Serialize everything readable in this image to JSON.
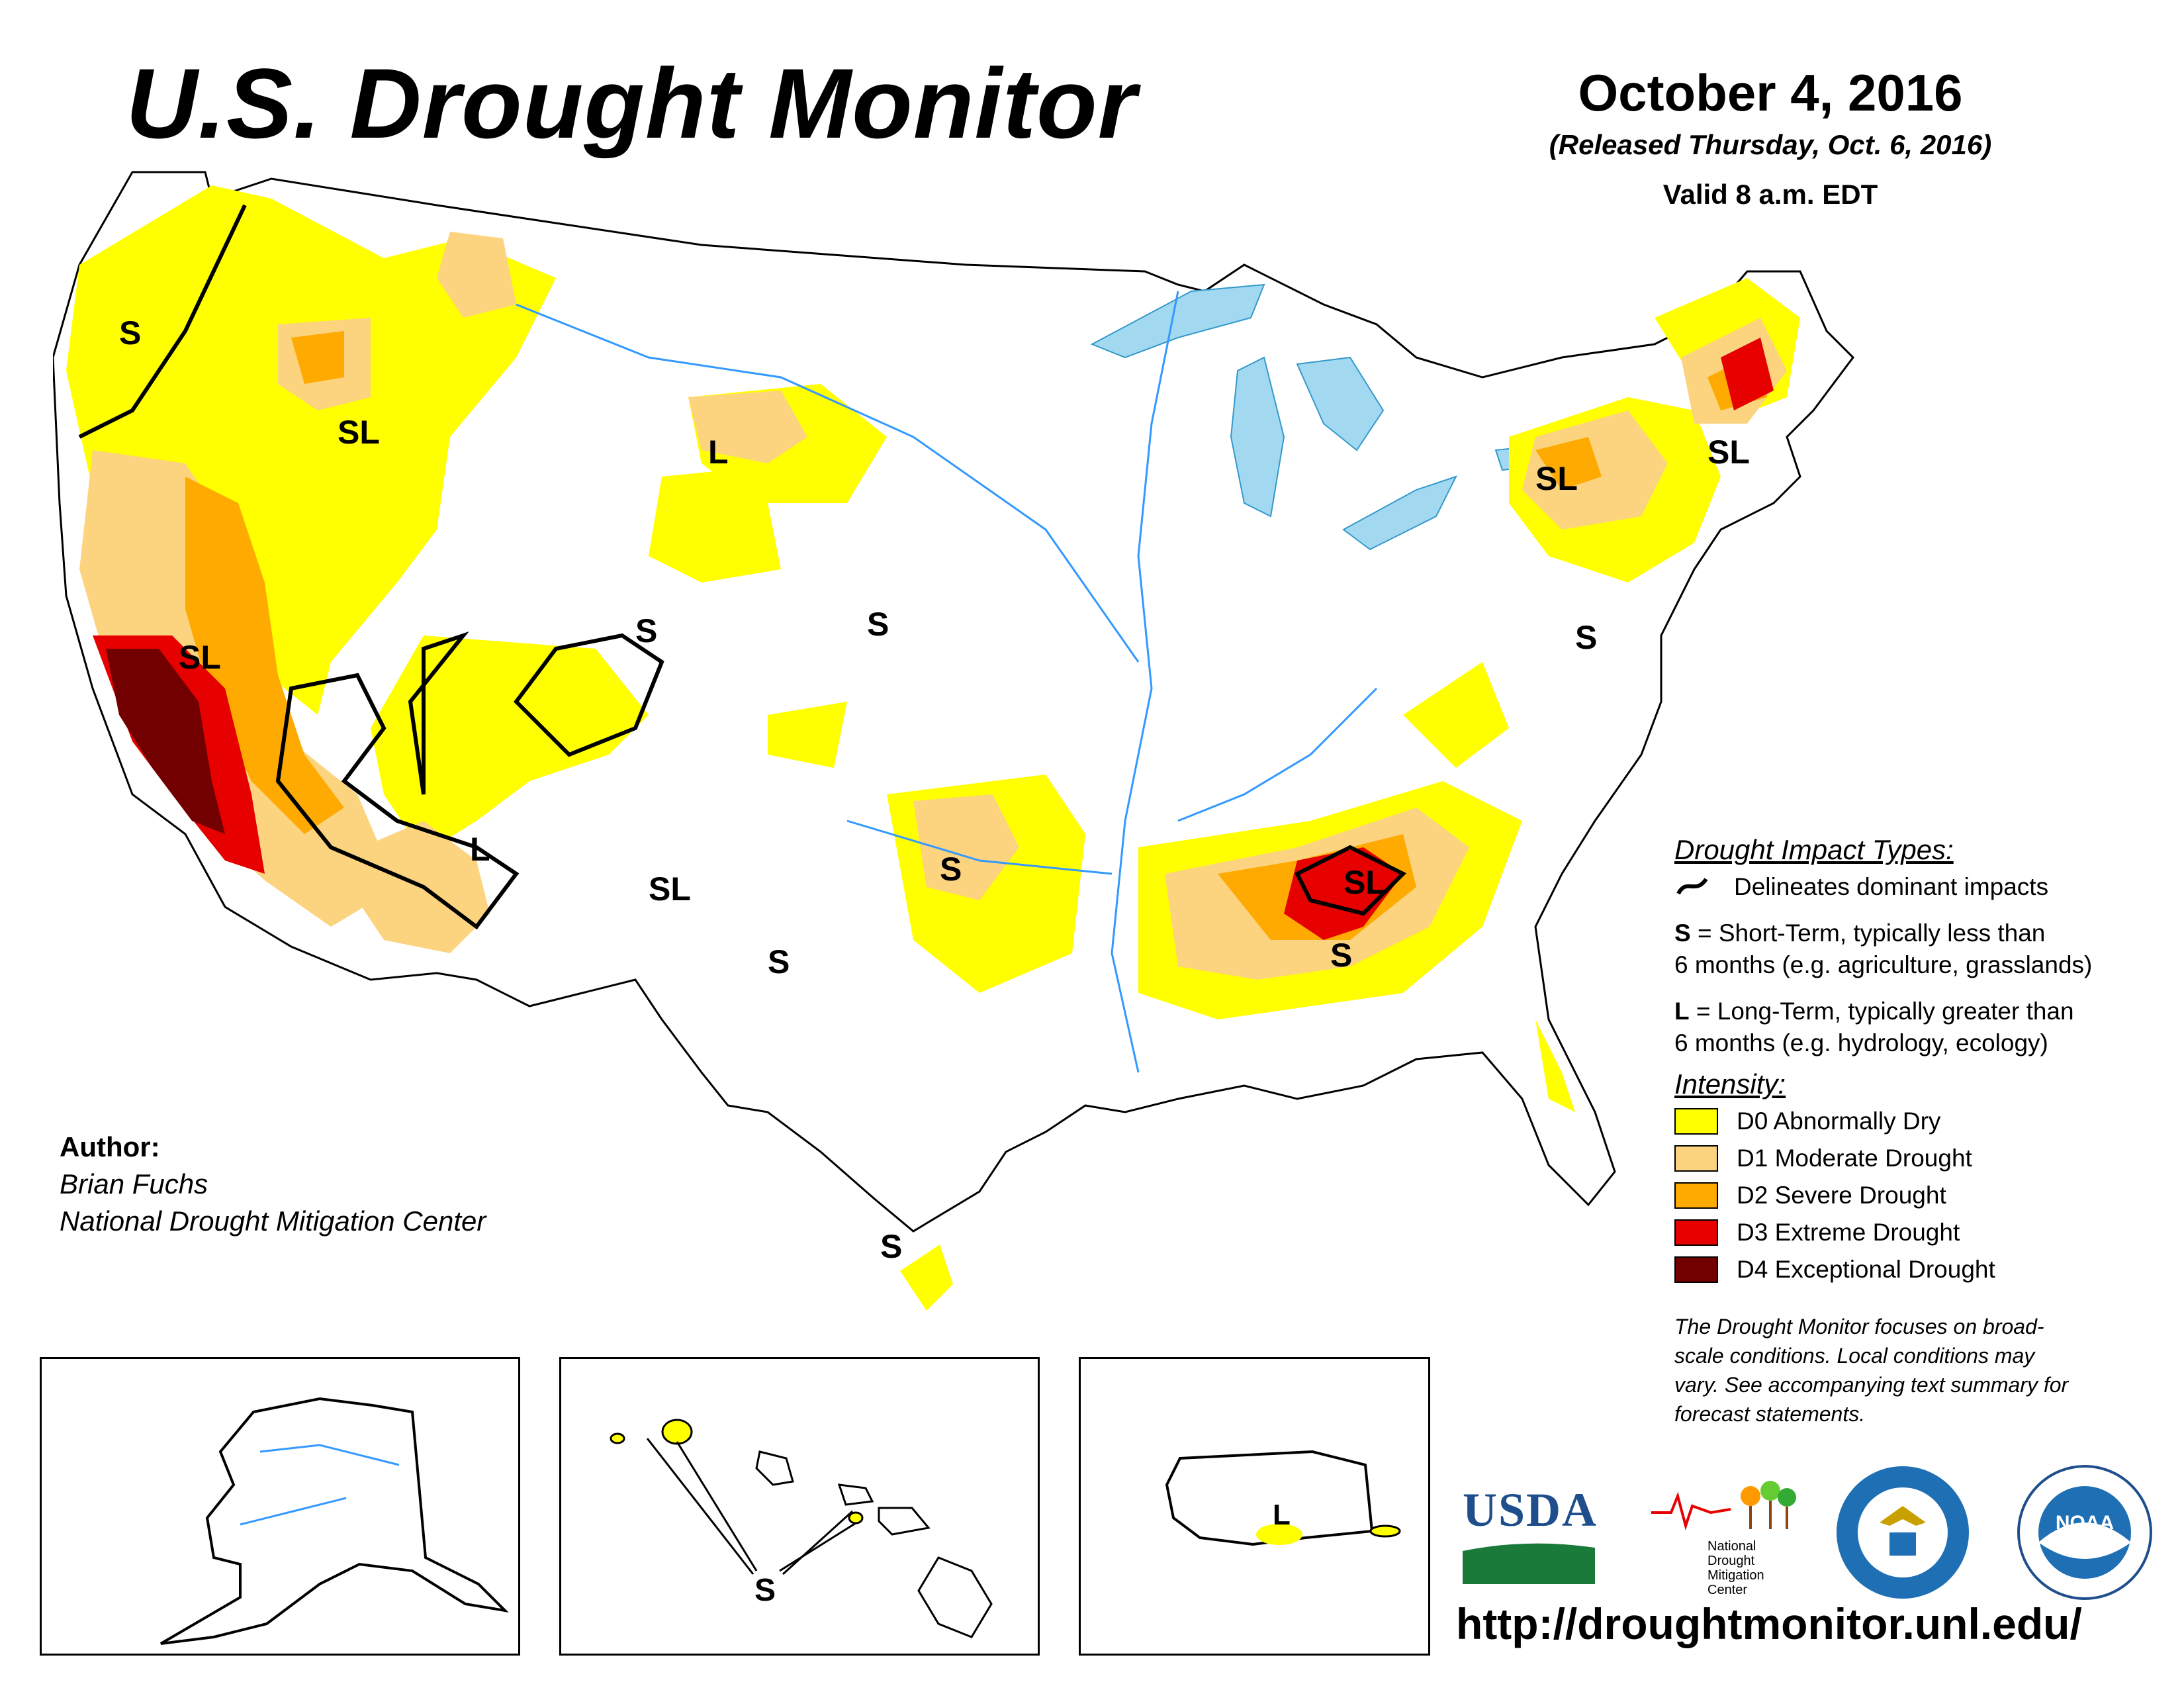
{
  "header": {
    "title": "U.S. Drought Monitor",
    "date": "October 4, 2016",
    "released": "(Released Thursday, Oct. 6, 2016)",
    "valid": "Valid 8 a.m. EDT"
  },
  "author": {
    "label": "Author:",
    "name": "Brian Fuchs",
    "org": "National Drought Mitigation Center"
  },
  "legend": {
    "impact_heading": "Drought Impact Types:",
    "delineates": "Delineates dominant impacts",
    "s_key": "S",
    "s_text": " = Short-Term, typically less than",
    "s_text2": "6 months (e.g. agriculture, grasslands)",
    "l_key": "L",
    "l_text": " = Long-Term, typically greater than",
    "l_text2": "6 months (e.g. hydrology, ecology)",
    "intensity_heading": "Intensity:",
    "categories": [
      {
        "label": "D0 Abnormally Dry",
        "color": "#ffff00"
      },
      {
        "label": "D1 Moderate Drought",
        "color": "#fcd37f"
      },
      {
        "label": "D2 Severe Drought",
        "color": "#ffaa00"
      },
      {
        "label": "D3 Extreme Drought",
        "color": "#e60000"
      },
      {
        "label": "D4 Exceptional Drought",
        "color": "#730000"
      }
    ],
    "note_lines": [
      "The Drought Monitor focuses on broad-",
      "scale conditions. Local conditions may",
      "vary. See accompanying text summary for",
      "forecast statements."
    ]
  },
  "map_labels": {
    "wa": "S",
    "id": "SL",
    "mt": "L",
    "ca": "SL",
    "co": "S",
    "ne": "S",
    "az": "L",
    "nm": "SL",
    "ok": "S",
    "tx": "S",
    "txcoast": "S",
    "tn": "SL",
    "ga": "S",
    "ny": "SL",
    "ma": "SL",
    "va": "S",
    "hawaii": "S",
    "puerto_rico": "L"
  },
  "logos": {
    "usda": "USDA",
    "ndmc": [
      "National",
      "Drought",
      "Mitigation",
      "Center"
    ],
    "noaa": "NOAA"
  },
  "url": "http://droughtmonitor.unl.edu/"
}
